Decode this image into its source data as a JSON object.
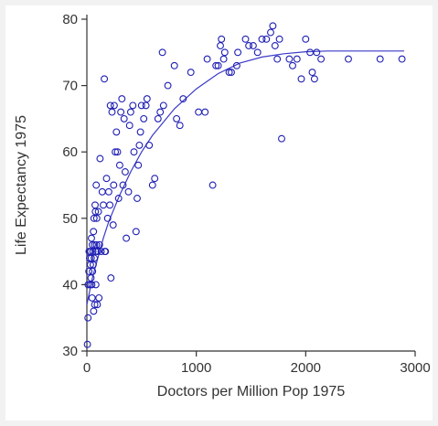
{
  "chart_data": {
    "type": "scatter",
    "title": "",
    "xlabel": "Doctors per Million Pop 1975",
    "ylabel": "Life Expectancy 1975",
    "xlim": [
      0,
      3000
    ],
    "ylim": [
      30,
      80
    ],
    "xticks": [
      0,
      1000,
      2000,
      3000
    ],
    "yticks": [
      30,
      40,
      50,
      60,
      70,
      80
    ],
    "grid": false,
    "legend": "none",
    "colors": {
      "points": "#1f1fb4",
      "fit": "#3a3ac8",
      "axis": "#333333"
    },
    "series": [
      {
        "marker": "open-circle",
        "points": [
          [
            5,
            31
          ],
          [
            10,
            35
          ],
          [
            12,
            40
          ],
          [
            18,
            42
          ],
          [
            20,
            45
          ],
          [
            25,
            44
          ],
          [
            30,
            40
          ],
          [
            33,
            43
          ],
          [
            35,
            45
          ],
          [
            38,
            41
          ],
          [
            40,
            44
          ],
          [
            42,
            47
          ],
          [
            45,
            40
          ],
          [
            48,
            38
          ],
          [
            50,
            46
          ],
          [
            52,
            42
          ],
          [
            55,
            45
          ],
          [
            58,
            43
          ],
          [
            60,
            48
          ],
          [
            62,
            36
          ],
          [
            65,
            50
          ],
          [
            68,
            44
          ],
          [
            70,
            46
          ],
          [
            72,
            37
          ],
          [
            75,
            52
          ],
          [
            78,
            51
          ],
          [
            80,
            45
          ],
          [
            82,
            40
          ],
          [
            85,
            55
          ],
          [
            88,
            46
          ],
          [
            90,
            50
          ],
          [
            95,
            37
          ],
          [
            100,
            45
          ],
          [
            105,
            51
          ],
          [
            110,
            38
          ],
          [
            115,
            46
          ],
          [
            120,
            59
          ],
          [
            130,
            45
          ],
          [
            140,
            54
          ],
          [
            150,
            52
          ],
          [
            160,
            71
          ],
          [
            165,
            45
          ],
          [
            170,
            45
          ],
          [
            180,
            56
          ],
          [
            190,
            50
          ],
          [
            200,
            54
          ],
          [
            210,
            52
          ],
          [
            215,
            67
          ],
          [
            220,
            41
          ],
          [
            230,
            66
          ],
          [
            240,
            49
          ],
          [
            245,
            55
          ],
          [
            250,
            67
          ],
          [
            260,
            60
          ],
          [
            270,
            63
          ],
          [
            280,
            60
          ],
          [
            290,
            53
          ],
          [
            300,
            58
          ],
          [
            310,
            66
          ],
          [
            320,
            68
          ],
          [
            330,
            55
          ],
          [
            340,
            65
          ],
          [
            350,
            57
          ],
          [
            360,
            47
          ],
          [
            380,
            54
          ],
          [
            390,
            64
          ],
          [
            400,
            66
          ],
          [
            420,
            67
          ],
          [
            430,
            60
          ],
          [
            450,
            48
          ],
          [
            460,
            53
          ],
          [
            470,
            58
          ],
          [
            480,
            61
          ],
          [
            490,
            63
          ],
          [
            500,
            67
          ],
          [
            520,
            65
          ],
          [
            540,
            67
          ],
          [
            550,
            68
          ],
          [
            570,
            61
          ],
          [
            600,
            55
          ],
          [
            620,
            56
          ],
          [
            650,
            65
          ],
          [
            670,
            66
          ],
          [
            690,
            75
          ],
          [
            700,
            67
          ],
          [
            740,
            70
          ],
          [
            800,
            73
          ],
          [
            820,
            65
          ],
          [
            850,
            64
          ],
          [
            880,
            68
          ],
          [
            950,
            72
          ],
          [
            1020,
            66
          ],
          [
            1080,
            66
          ],
          [
            1100,
            74
          ],
          [
            1150,
            55
          ],
          [
            1180,
            73
          ],
          [
            1200,
            73
          ],
          [
            1220,
            76
          ],
          [
            1230,
            77
          ],
          [
            1250,
            74
          ],
          [
            1260,
            75
          ],
          [
            1300,
            72
          ],
          [
            1320,
            72
          ],
          [
            1370,
            73
          ],
          [
            1380,
            75
          ],
          [
            1450,
            77
          ],
          [
            1480,
            76
          ],
          [
            1520,
            76
          ],
          [
            1560,
            75
          ],
          [
            1600,
            77
          ],
          [
            1640,
            77
          ],
          [
            1680,
            78
          ],
          [
            1700,
            79
          ],
          [
            1720,
            76
          ],
          [
            1740,
            74
          ],
          [
            1760,
            77
          ],
          [
            1780,
            62
          ],
          [
            1850,
            74
          ],
          [
            1880,
            73
          ],
          [
            1920,
            74
          ],
          [
            1960,
            71
          ],
          [
            2000,
            77
          ],
          [
            2040,
            75
          ],
          [
            2060,
            72
          ],
          [
            2080,
            71
          ],
          [
            2100,
            75
          ],
          [
            2140,
            74
          ],
          [
            2390,
            74
          ],
          [
            2680,
            74
          ],
          [
            2880,
            74
          ]
        ]
      }
    ],
    "fit_line": {
      "x": [
        0,
        50,
        100,
        150,
        200,
        300,
        400,
        500,
        600,
        700,
        800,
        900,
        1000,
        1200,
        1400,
        1600,
        1800,
        2000,
        2200,
        2400,
        2600,
        2800,
        2900
      ],
      "y": [
        37,
        41,
        44,
        47,
        49.5,
        53.5,
        57,
        60,
        62.5,
        64.5,
        66.5,
        68,
        69.5,
        71.8,
        73.4,
        74.3,
        74.8,
        75.1,
        75.2,
        75.2,
        75.2,
        75.2,
        75.2
      ]
    }
  }
}
